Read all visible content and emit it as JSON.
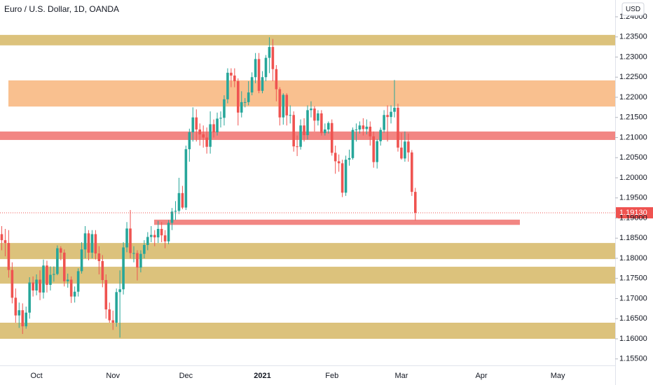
{
  "header": {
    "title": "Euro / U.S. Dollar, 1D, OANDA",
    "currency": "USD"
  },
  "chart_data": {
    "type": "candlestick",
    "up_color": "#26a69a",
    "down_color": "#ef5350",
    "grid": false,
    "ylim": [
      1.15339,
      1.24417
    ],
    "yticks": [
      {
        "value": 1.155,
        "label": "1.15500"
      },
      {
        "value": 1.16,
        "label": "1.16000"
      },
      {
        "value": 1.165,
        "label": "1.16500"
      },
      {
        "value": 1.17,
        "label": "1.17000"
      },
      {
        "value": 1.175,
        "label": "1.17500"
      },
      {
        "value": 1.18,
        "label": "1.18000"
      },
      {
        "value": 1.185,
        "label": "1.18500"
      },
      {
        "value": 1.19,
        "label": "1.19000"
      },
      {
        "value": 1.195,
        "label": "1.19500"
      },
      {
        "value": 1.2,
        "label": "1.20000"
      },
      {
        "value": 1.205,
        "label": "1.20500"
      },
      {
        "value": 1.21,
        "label": "1.21000"
      },
      {
        "value": 1.215,
        "label": "1.21500"
      },
      {
        "value": 1.22,
        "label": "1.22000"
      },
      {
        "value": 1.225,
        "label": "1.22500"
      },
      {
        "value": 1.23,
        "label": "1.23000"
      },
      {
        "value": 1.235,
        "label": "1.23500"
      },
      {
        "value": 1.24,
        "label": "1.24000"
      }
    ],
    "categories": [
      null,
      null,
      null,
      null,
      null,
      null,
      null,
      null,
      null,
      null,
      "Oct",
      null,
      null,
      null,
      null,
      null,
      null,
      null,
      null,
      null,
      null,
      null,
      null,
      null,
      null,
      null,
      null,
      null,
      null,
      null,
      null,
      null,
      "Nov",
      null,
      null,
      null,
      null,
      null,
      null,
      null,
      null,
      null,
      null,
      null,
      null,
      null,
      null,
      null,
      null,
      null,
      null,
      null,
      null,
      "Dec",
      null,
      null,
      null,
      null,
      null,
      null,
      null,
      null,
      null,
      null,
      null,
      null,
      null,
      null,
      null,
      null,
      null,
      null,
      null,
      null,
      null,
      "2021",
      null,
      null,
      null,
      null,
      null,
      null,
      null,
      null,
      null,
      null,
      null,
      null,
      null,
      null,
      null,
      null,
      null,
      null,
      null,
      "Feb",
      null,
      null,
      null,
      null,
      null,
      null,
      null,
      null,
      null,
      null,
      null,
      null,
      null,
      null,
      null,
      null,
      null,
      null,
      null,
      "Mar",
      null,
      null,
      null,
      null,
      null,
      null,
      null,
      null,
      null,
      null,
      null,
      null,
      null,
      null,
      null,
      null,
      null,
      null,
      null,
      null,
      null,
      null,
      "Apr",
      null,
      null,
      null,
      null,
      null,
      null,
      null,
      null,
      null,
      null,
      null,
      null,
      null,
      null,
      null,
      null,
      null,
      null,
      null,
      null,
      null,
      "May",
      null,
      null,
      null,
      null,
      null,
      null,
      null,
      null,
      null,
      null,
      null,
      null,
      null,
      null,
      null,
      null
    ],
    "open": [
      1.186,
      1.1845,
      1.1838,
      1.1771,
      1.1702,
      1.1658,
      1.1671,
      1.1631,
      1.1665,
      1.174,
      1.172,
      1.1747,
      1.1715,
      1.1782,
      1.1734,
      1.1759,
      1.1761,
      1.1825,
      1.1814,
      1.1743,
      1.1747,
      1.1705,
      1.1717,
      1.1768,
      1.1822,
      1.1862,
      1.1814,
      1.186,
      1.1812,
      1.1793,
      1.1746,
      1.1673,
      1.1646,
      1.164,
      1.1716,
      1.1723,
      1.1827,
      1.1874,
      1.1813,
      1.1813,
      1.1777,
      1.1811,
      1.1833,
      1.1853,
      1.1858,
      1.1852,
      1.1873,
      1.1857,
      1.1842,
      1.1888,
      1.1916,
      1.1918,
      1.1962,
      1.1926,
      1.2071,
      1.2113,
      1.215,
      1.212,
      1.2108,
      1.21,
      1.2077,
      1.2133,
      1.2113,
      1.2147,
      1.2149,
      1.2195,
      1.2261,
      1.2254,
      1.224,
      1.2162,
      1.2188,
      1.2188,
      1.2212,
      1.225,
      1.2295,
      1.2216,
      1.225,
      1.2298,
      1.2325,
      1.227,
      1.222,
      1.215,
      1.2206,
      1.2155,
      1.2156,
      1.2078,
      1.2077,
      1.213,
      1.2106,
      1.2168,
      1.2172,
      1.2142,
      1.216,
      1.2111,
      1.212,
      1.2136,
      1.2062,
      1.2041,
      1.2036,
      1.1963,
      1.2045,
      1.2049,
      1.2119,
      1.212,
      1.213,
      1.2121,
      1.2127,
      1.2103,
      1.2039,
      1.2091,
      1.2119,
      1.2156,
      1.2151,
      1.2164,
      1.2174,
      1.2075,
      1.2048,
      1.209,
      1.2063,
      1.1965,
      null,
      null,
      null,
      null,
      null,
      null,
      null,
      null,
      null,
      null,
      null,
      null,
      null,
      null,
      null,
      null,
      null,
      null,
      null,
      null,
      null,
      null,
      null,
      null,
      null,
      null,
      null,
      null,
      null,
      null,
      null,
      null,
      null,
      null,
      null,
      null,
      null,
      null,
      null,
      null,
      null,
      null,
      null,
      null,
      null,
      null,
      null,
      null,
      null,
      null,
      null,
      null,
      null,
      null,
      null,
      null,
      null
    ],
    "high": [
      1.188,
      1.1873,
      1.187,
      1.179,
      1.1725,
      1.169,
      1.1688,
      1.168,
      1.1753,
      1.1755,
      1.176,
      1.177,
      1.1797,
      1.1794,
      1.178,
      1.178,
      1.1832,
      1.183,
      1.1822,
      1.1762,
      1.1755,
      1.173,
      1.1775,
      1.184,
      1.188,
      1.187,
      1.187,
      1.187,
      1.183,
      1.1808,
      1.176,
      1.169,
      1.167,
      1.1725,
      1.177,
      1.184,
      1.189,
      1.192,
      1.183,
      1.182,
      1.182,
      1.1845,
      1.1865,
      1.188,
      1.187,
      1.1893,
      1.189,
      1.187,
      1.1895,
      1.1925,
      1.1942,
      1.2,
      1.198,
      1.208,
      1.2122,
      1.2175,
      1.217,
      1.2135,
      1.213,
      1.2125,
      1.2165,
      1.2145,
      1.2162,
      1.2165,
      1.2205,
      1.2272,
      1.2272,
      1.2272,
      1.2247,
      1.2215,
      1.2198,
      1.224,
      1.2262,
      1.231,
      1.231,
      1.2265,
      1.2305,
      1.2349,
      1.2345,
      1.228,
      1.2225,
      1.221,
      1.221,
      1.218,
      1.2165,
      1.2105,
      1.2145,
      1.2148,
      1.218,
      1.219,
      1.2178,
      1.2168,
      1.2168,
      1.2135,
      1.214,
      1.2145,
      1.208,
      1.2058,
      1.2045,
      1.2055,
      1.207,
      1.2125,
      1.2135,
      1.214,
      1.2148,
      1.2145,
      1.214,
      1.2115,
      1.2096,
      1.2125,
      1.2168,
      1.218,
      1.218,
      1.2243,
      1.2184,
      1.2112,
      1.2115,
      1.211,
      1.2069,
      1.1975,
      null,
      null,
      null,
      null,
      null,
      null,
      null,
      null,
      null,
      null,
      null,
      null,
      null,
      null,
      null,
      null,
      null,
      null,
      null,
      null,
      null,
      null,
      null,
      null,
      null,
      null,
      null,
      null,
      null,
      null,
      null,
      null,
      null,
      null,
      null,
      null,
      null,
      null,
      null,
      null,
      null,
      null,
      null,
      null,
      null,
      null,
      null,
      null,
      null,
      null,
      null,
      null,
      null,
      null,
      null,
      null,
      null
    ],
    "low": [
      1.182,
      1.1805,
      1.1752,
      1.1688,
      1.164,
      1.1627,
      1.1612,
      1.1625,
      1.165,
      1.1705,
      1.1708,
      1.1696,
      1.17,
      1.1715,
      1.172,
      1.1742,
      1.1758,
      1.1795,
      1.173,
      1.1727,
      1.1689,
      1.169,
      1.1705,
      1.1762,
      1.18,
      1.1795,
      1.18,
      1.1797,
      1.176,
      1.1728,
      1.165,
      1.164,
      1.1622,
      1.163,
      1.1603,
      1.171,
      1.1815,
      1.18,
      1.179,
      1.1745,
      1.1765,
      1.18,
      1.182,
      1.184,
      1.183,
      1.1838,
      1.184,
      1.1825,
      1.1835,
      1.187,
      1.1895,
      1.191,
      1.1922,
      1.192,
      1.204,
      1.209,
      1.209,
      1.208,
      1.2075,
      1.206,
      1.206,
      1.21,
      1.2105,
      1.2125,
      1.213,
      1.2185,
      1.2225,
      1.2225,
      1.213,
      1.215,
      1.2175,
      1.218,
      1.2205,
      1.2235,
      1.221,
      1.221,
      1.224,
      1.226,
      1.224,
      1.219,
      1.213,
      1.2132,
      1.213,
      1.2135,
      1.2065,
      1.2054,
      1.207,
      1.209,
      1.2095,
      1.215,
      1.2115,
      1.213,
      1.2105,
      1.2105,
      1.211,
      1.2055,
      1.201,
      1.2015,
      1.1952,
      1.1955,
      1.203,
      1.2045,
      1.209,
      1.211,
      1.2105,
      1.2108,
      1.208,
      1.2025,
      1.2023,
      1.208,
      1.2112,
      1.209,
      1.2135,
      1.215,
      1.2065,
      1.2045,
      1.204,
      1.204,
      1.1955,
      1.1894,
      null,
      null,
      null,
      null,
      null,
      null,
      null,
      null,
      null,
      null,
      null,
      null,
      null,
      null,
      null,
      null,
      null,
      null,
      null,
      null,
      null,
      null,
      null,
      null,
      null,
      null,
      null,
      null,
      null,
      null,
      null,
      null,
      null,
      null,
      null,
      null,
      null,
      null,
      null,
      null,
      null,
      null,
      null,
      null,
      null,
      null,
      null,
      null,
      null,
      null,
      null,
      null,
      null,
      null,
      null,
      null,
      null
    ],
    "close": [
      1.1845,
      1.1838,
      1.1771,
      1.1702,
      1.1658,
      1.1671,
      1.1631,
      1.1665,
      1.174,
      1.172,
      1.1747,
      1.1715,
      1.1782,
      1.1734,
      1.1759,
      1.1761,
      1.1825,
      1.1814,
      1.1743,
      1.1747,
      1.1705,
      1.1717,
      1.1768,
      1.1822,
      1.1862,
      1.1814,
      1.186,
      1.1812,
      1.1793,
      1.1746,
      1.1673,
      1.1646,
      1.164,
      1.1716,
      1.1723,
      1.1827,
      1.1874,
      1.1813,
      1.1813,
      1.1777,
      1.1811,
      1.1833,
      1.1853,
      1.1858,
      1.1852,
      1.1873,
      1.1857,
      1.1842,
      1.1888,
      1.1916,
      1.1918,
      1.1962,
      1.1926,
      1.2071,
      1.2113,
      1.215,
      1.212,
      1.2108,
      1.21,
      1.2077,
      1.2133,
      1.2113,
      1.2147,
      1.2149,
      1.2195,
      1.2261,
      1.2254,
      1.224,
      1.2162,
      1.2188,
      1.2188,
      1.2212,
      1.225,
      1.2295,
      1.2216,
      1.225,
      1.2298,
      1.2325,
      1.227,
      1.222,
      1.215,
      1.2206,
      1.2155,
      1.2156,
      1.2078,
      1.2077,
      1.213,
      1.2106,
      1.2168,
      1.2172,
      1.2142,
      1.216,
      1.2111,
      1.212,
      1.2136,
      1.2062,
      1.2041,
      1.2036,
      1.1963,
      1.2045,
      1.2049,
      1.2119,
      1.212,
      1.213,
      1.2121,
      1.2127,
      1.2103,
      1.2039,
      1.2091,
      1.2119,
      1.2156,
      1.2151,
      1.2164,
      1.2174,
      1.2075,
      1.2048,
      1.209,
      1.2063,
      1.1965,
      1.1913,
      null,
      null,
      null,
      null,
      null,
      null,
      null,
      null,
      null,
      null,
      null,
      null,
      null,
      null,
      null,
      null,
      null,
      null,
      null,
      null,
      null,
      null,
      null,
      null,
      null,
      null,
      null,
      null,
      null,
      null,
      null,
      null,
      null,
      null,
      null,
      null,
      null,
      null,
      null,
      null,
      null,
      null,
      null,
      null,
      null,
      null,
      null,
      null,
      null,
      null,
      null,
      null,
      null,
      null,
      null,
      null,
      null
    ],
    "last_price": {
      "value": 1.1913,
      "label": "1.19130"
    },
    "zones": [
      {
        "low": 1.2329,
        "high": 1.2355,
        "color": "#dcc27c"
      },
      {
        "low": 1.2177,
        "high": 1.2242,
        "color": "#f9c08f"
      },
      {
        "low": 1.2094,
        "high": 1.2115,
        "color": "#f28683"
      },
      {
        "low": 1.1883,
        "high": 1.1896,
        "color": "#f28683"
      },
      {
        "low": 1.1798,
        "high": 1.1838,
        "color": "#dcc27c"
      },
      {
        "low": 1.1737,
        "high": 1.1779,
        "color": "#dcc27c"
      },
      {
        "low": 1.16,
        "high": 1.164,
        "color": "#dcc27c"
      }
    ]
  }
}
